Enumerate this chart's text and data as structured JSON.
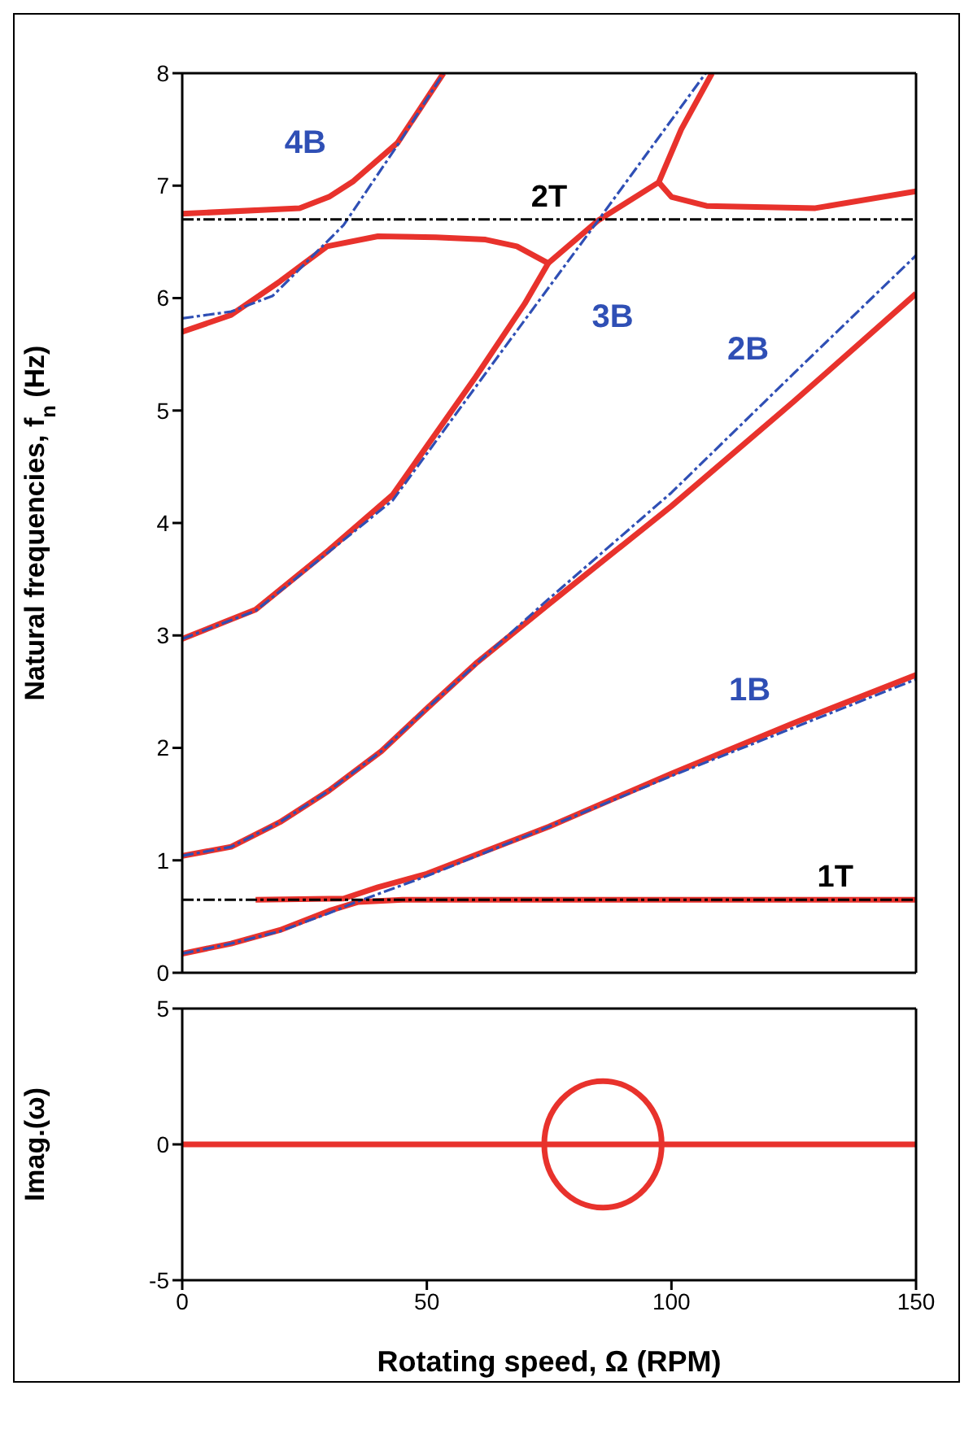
{
  "chart_data": [
    {
      "type": "line",
      "ylabel": "Natural frequencies, f$_{n}$ (Hz)",
      "xlim": [
        0,
        150
      ],
      "ylim": [
        0,
        8
      ],
      "xticks": [
        0,
        50,
        100,
        150
      ],
      "yticks": [
        0,
        1,
        2,
        3,
        4,
        5,
        6,
        7,
        8
      ],
      "tick_labels": "y",
      "series": [
        {
          "color": "#e8322c",
          "line_style": "solid",
          "x": [
            0,
            10,
            20,
            30,
            36,
            45,
            150
          ],
          "values": [
            0.17,
            0.26,
            0.38,
            0.55,
            0.63,
            0.65,
            0.65
          ]
        },
        {
          "color": "#e8322c",
          "line_style": "solid",
          "x": [
            15,
            33,
            40,
            50,
            75,
            100,
            125,
            150
          ],
          "values": [
            0.65,
            0.66,
            0.76,
            0.88,
            1.3,
            1.77,
            2.22,
            2.65
          ]
        },
        {
          "color": "#e8322c",
          "line_style": "solid",
          "x": [
            0,
            10,
            20,
            30,
            40.7,
            50,
            60,
            75,
            100,
            125,
            150
          ],
          "values": [
            1.04,
            1.12,
            1.34,
            1.62,
            1.97,
            2.35,
            2.75,
            3.28,
            4.15,
            5.08,
            6.04
          ]
        },
        {
          "color": "#e8322c",
          "line_style": "solid",
          "x": [
            0,
            10,
            20,
            29.6,
            40,
            51.8,
            62,
            68.4,
            74.8,
            70,
            60,
            43,
            30,
            15,
            0
          ],
          "values": [
            5.7,
            5.85,
            6.15,
            6.46,
            6.55,
            6.54,
            6.52,
            6.46,
            6.31,
            5.95,
            5.3,
            4.25,
            3.76,
            3.23,
            2.97
          ]
        },
        {
          "color": "#e8322c",
          "line_style": "solid",
          "x": [
            74.8,
            85,
            97.4,
            102,
            108.3
          ],
          "values": [
            6.31,
            6.69,
            7.03,
            7.5,
            8.0
          ]
        },
        {
          "color": "#e8322c",
          "line_style": "solid",
          "x": [
            97.4,
            100,
            107.2,
            129.4,
            150
          ],
          "values": [
            7.03,
            6.9,
            6.82,
            6.8,
            6.95
          ]
        },
        {
          "color": "#e8322c",
          "line_style": "solid",
          "x": [
            0,
            24,
            30,
            35,
            44,
            53.4
          ],
          "values": [
            6.75,
            6.8,
            6.9,
            7.04,
            7.38,
            8.0
          ]
        },
        {
          "name": "4B",
          "color": "#2f4fb5",
          "line_style": "dashed",
          "x": [
            0,
            10,
            18.5,
            33,
            44,
            53.4
          ],
          "values": [
            5.82,
            5.88,
            6.02,
            6.65,
            7.36,
            8.0
          ]
        },
        {
          "name": "3B",
          "color": "#2f4fb5",
          "line_style": "dashed",
          "x": [
            0,
            15,
            29.6,
            43,
            63,
            85,
            107
          ],
          "values": [
            2.97,
            3.22,
            3.73,
            4.2,
            5.39,
            6.69,
            8.0
          ]
        },
        {
          "name": "2B",
          "color": "#2f4fb5",
          "line_style": "dashed",
          "x": [
            0,
            10,
            20,
            30,
            40.7,
            50,
            74,
            100,
            125,
            150
          ],
          "values": [
            1.04,
            1.12,
            1.34,
            1.62,
            1.97,
            2.35,
            3.29,
            4.27,
            5.33,
            6.38
          ]
        },
        {
          "name": "1B",
          "color": "#2f4fb5",
          "line_style": "dashed",
          "x": [
            0,
            10,
            20,
            30,
            35,
            40,
            50,
            75,
            100,
            125,
            150
          ],
          "values": [
            0.17,
            0.26,
            0.37,
            0.53,
            0.62,
            0.7,
            0.86,
            1.3,
            1.75,
            2.18,
            2.61
          ]
        }
      ],
      "ref_lines": [
        {
          "axis": "y",
          "value": 6.7,
          "label": "2T",
          "color": "#000000",
          "line_style": "dashed"
        },
        {
          "axis": "y",
          "value": 0.65,
          "label": "1T",
          "color": "#000000",
          "line_style": "dashed"
        }
      ]
    },
    {
      "type": "line",
      "xlabel": "Rotating speed, Ω (RPM)",
      "ylabel": "Imag.(ω)",
      "xlim": [
        0,
        150
      ],
      "ylim": [
        -5,
        5
      ],
      "xticks": [
        0,
        50,
        100,
        150
      ],
      "yticks": [
        -5,
        0,
        5
      ],
      "series": [
        {
          "color": "#e8322c",
          "line_style": "solid",
          "x": [
            0,
            150
          ],
          "values": [
            0,
            0
          ]
        }
      ]
    }
  ]
}
